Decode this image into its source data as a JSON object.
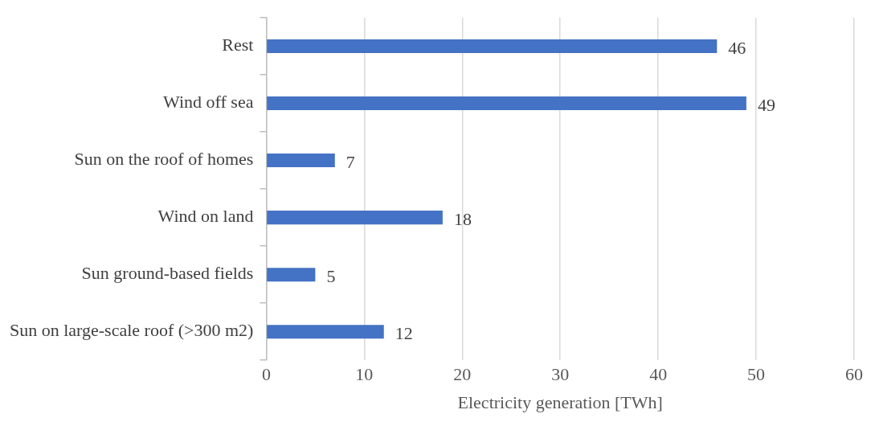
{
  "chart_data": {
    "type": "bar",
    "orientation": "horizontal",
    "categories": [
      "Rest",
      "Wind off sea",
      "Sun on the roof of homes",
      "Wind on land",
      "Sun ground-based fields",
      "Sun on large-scale roof (>300 m2)"
    ],
    "values": [
      46,
      49,
      7,
      18,
      5,
      12
    ],
    "color": "#4472c4",
    "xlabel": "Electricity generation [TWh]",
    "xlim": [
      0,
      60
    ],
    "xticks": [
      0,
      10,
      20,
      30,
      40,
      50,
      60
    ],
    "grid": "x",
    "data_labels": true
  }
}
